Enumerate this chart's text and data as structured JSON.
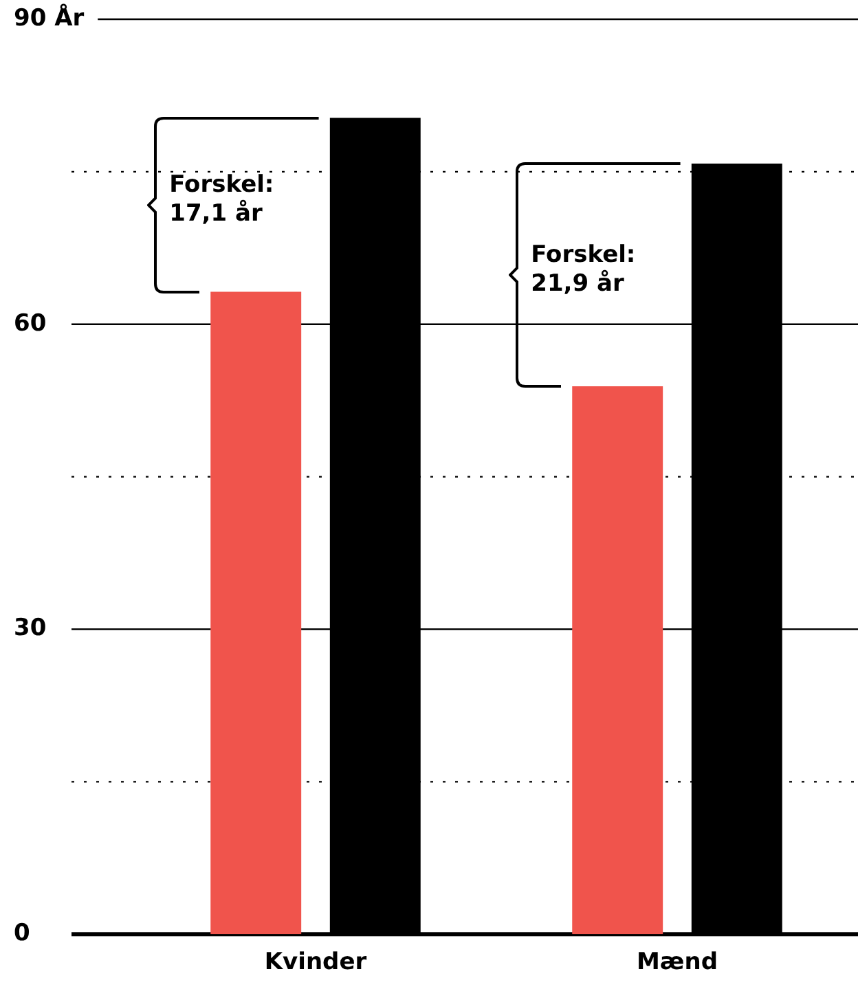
{
  "chart_data": {
    "type": "bar",
    "categories": [
      "Kvinder",
      "Mænd"
    ],
    "series": [
      {
        "color": "#f0544c",
        "values": [
          63.2,
          53.9
        ]
      },
      {
        "color": "#000000",
        "values": [
          80.3,
          75.8
        ]
      }
    ],
    "ylim": [
      0,
      90
    ],
    "yticks": [
      0,
      {
        "value": 15,
        "label": null
      },
      30,
      {
        "value": 45,
        "label": null
      },
      60,
      {
        "value": 75,
        "label": null
      },
      {
        "value": 90,
        "label": "90 År"
      }
    ],
    "grid": "y",
    "legend": false,
    "annotations": [
      "Forskel:\n17,1 år",
      "Forskel:\n21,9 år"
    ]
  }
}
